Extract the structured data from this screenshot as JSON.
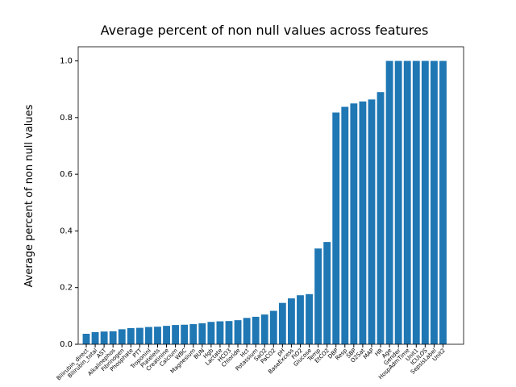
{
  "chart_data": {
    "type": "bar",
    "title": "Average percent of non null values across features",
    "ylabel": "Average percent of non null values",
    "color": "#1f77b4",
    "categories": [
      "Bilirubin_direct",
      "Bilirubin_total",
      "AST",
      "Alkalinephos",
      "Fibrinogen",
      "Phosphate",
      "PTT",
      "TroponinI",
      "Platelets",
      "Creatinine",
      "Calcium",
      "WBC",
      "Magnesium",
      "BUN",
      "Hgb",
      "Lactate",
      "HCO3",
      "Chloride",
      "Hct",
      "Potassium",
      "SaO2",
      "PaCO2",
      "pH",
      "BaseExcess",
      "FiO2",
      "Glucose",
      "Temp",
      "EtCO2",
      "DBP",
      "Resp",
      "SBP",
      "O2Sat",
      "MAP",
      "HR",
      "Age",
      "Gender",
      "HospAdmTime",
      "Unit1",
      "ICULOS",
      "SepsisLabel",
      "Unit2"
    ],
    "values": [
      0.037,
      0.043,
      0.045,
      0.046,
      0.053,
      0.057,
      0.058,
      0.061,
      0.062,
      0.065,
      0.068,
      0.069,
      0.071,
      0.074,
      0.079,
      0.081,
      0.082,
      0.085,
      0.093,
      0.097,
      0.105,
      0.118,
      0.146,
      0.162,
      0.173,
      0.177,
      0.338,
      0.361,
      0.818,
      0.838,
      0.85,
      0.857,
      0.864,
      0.89,
      1.0,
      1.0,
      1.0,
      1.0,
      1.0,
      1.0,
      1.0
    ],
    "ylim": [
      0,
      1.05
    ],
    "yticks": [
      {
        "value": 0,
        "label": "0.0"
      },
      {
        "value": 0.2,
        "label": "0.2"
      },
      {
        "value": 0.4,
        "label": "0.4"
      },
      {
        "value": 0.6,
        "label": "0.6"
      },
      {
        "value": 0.8,
        "label": "0.8"
      },
      {
        "value": 1,
        "label": "1.0"
      }
    ]
  }
}
